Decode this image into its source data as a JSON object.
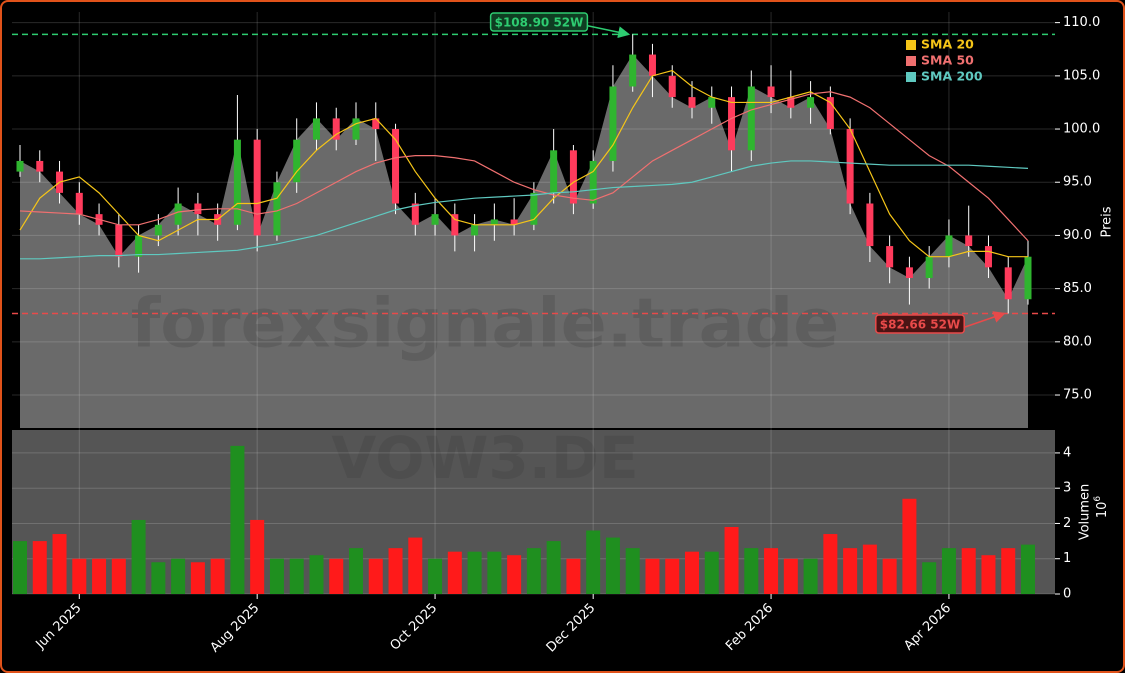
{
  "chart_data": [
    {
      "type": "candlestick",
      "watermark": "forexsignale.trade",
      "ylabel": "Preis",
      "open": [
        96,
        97,
        96,
        94,
        92,
        91,
        88,
        90,
        91,
        93,
        92,
        91,
        99,
        90,
        95,
        99,
        101,
        99,
        101,
        100,
        93,
        91,
        92,
        90,
        91,
        91.5,
        91,
        94,
        98,
        93,
        97,
        104,
        107,
        105,
        103,
        102,
        103,
        98,
        104,
        103,
        102,
        103,
        100,
        93,
        89,
        87,
        86,
        88,
        90,
        89,
        87,
        84
      ],
      "high": [
        98.5,
        98,
        97,
        95,
        93,
        92,
        91,
        92,
        94.5,
        94,
        93,
        103.2,
        100,
        96,
        101,
        102.5,
        102,
        102.5,
        102.5,
        100.5,
        94,
        93.5,
        93,
        92,
        93,
        93.5,
        95,
        100,
        98.5,
        98,
        106,
        108.9,
        108,
        106,
        104.5,
        104,
        104,
        105.5,
        106,
        105.5,
        104.5,
        104,
        101,
        94,
        90,
        88,
        89,
        91.5,
        92.8,
        90,
        88,
        89.5
      ],
      "low": [
        95.5,
        95,
        93,
        91,
        90,
        87,
        86.5,
        89,
        90,
        90,
        89.5,
        90.5,
        88.5,
        89.5,
        94,
        98,
        98,
        98.5,
        97,
        92,
        90,
        90,
        88.5,
        88.5,
        89.5,
        90,
        90.5,
        93,
        92,
        92.5,
        96,
        103.5,
        103,
        102,
        101,
        100.5,
        96,
        97,
        101.5,
        101,
        100.5,
        99.5,
        92,
        87.5,
        85.5,
        83.5,
        85,
        87,
        88,
        86,
        82.66,
        83.5
      ],
      "close": [
        97,
        96,
        94,
        92,
        91,
        88,
        90,
        91,
        93,
        92,
        91,
        99,
        90,
        95,
        99,
        101,
        99,
        101,
        100,
        93,
        91,
        92,
        90,
        91,
        91.5,
        91,
        94,
        98,
        93,
        97,
        104,
        107,
        105,
        103,
        102,
        103,
        98,
        104,
        103,
        102,
        103,
        100,
        93,
        89,
        87,
        86,
        88,
        90,
        89,
        87,
        84,
        88
      ],
      "up_color": "#2fb52f",
      "down_color": "#ff3b5c",
      "area_color": "#6a6a6a",
      "series": [
        {
          "name": "SMA 20",
          "color": "#f5c518",
          "values": [
            90.5,
            93.5,
            95,
            95.5,
            94,
            92,
            90,
            89.5,
            90.5,
            91.5,
            91.5,
            93,
            93,
            93.5,
            96,
            98,
            99.5,
            100.5,
            101,
            99,
            96,
            93.5,
            91.5,
            91,
            91,
            91,
            91.5,
            93.5,
            95,
            96,
            98.5,
            102,
            105,
            105.5,
            104,
            103,
            102.5,
            102.5,
            102.5,
            103,
            103.5,
            102.5,
            100,
            96,
            92,
            89.5,
            88,
            88,
            88.5,
            88.5,
            88,
            88
          ]
        },
        {
          "name": "SMA 50",
          "color": "#f07070",
          "values": [
            92.3,
            92.2,
            92.1,
            92,
            91.5,
            91,
            91,
            91.5,
            92.2,
            92.4,
            92.5,
            92.5,
            92,
            92.3,
            93,
            94,
            95,
            96,
            96.8,
            97.3,
            97.5,
            97.5,
            97.3,
            97,
            96,
            95,
            94.3,
            93.8,
            93.5,
            93.3,
            94,
            95.5,
            97,
            98,
            99,
            100,
            101,
            101.8,
            102.3,
            102.8,
            103.3,
            103.5,
            103,
            102,
            100.5,
            99,
            97.5,
            96.5,
            95,
            93.5,
            91.5,
            89.5
          ]
        },
        {
          "name": "SMA 200",
          "color": "#5fc9c0",
          "values": [
            87.8,
            87.8,
            87.9,
            88,
            88.1,
            88.1,
            88.2,
            88.2,
            88.3,
            88.4,
            88.5,
            88.6,
            88.9,
            89.2,
            89.6,
            90,
            90.6,
            91.2,
            91.8,
            92.4,
            92.8,
            93.1,
            93.3,
            93.5,
            93.6,
            93.7,
            93.8,
            94,
            94.1,
            94.3,
            94.5,
            94.6,
            94.7,
            94.8,
            95,
            95.5,
            96,
            96.5,
            96.8,
            97,
            97,
            96.9,
            96.8,
            96.7,
            96.6,
            96.6,
            96.6,
            96.6,
            96.6,
            96.5,
            96.4,
            96.3
          ]
        }
      ],
      "legend": "upper right",
      "grid": true,
      "ylim": [
        71.9,
        111
      ],
      "yticks": [
        {
          "value": 75,
          "label": "75.0"
        },
        {
          "value": 80,
          "label": "80.0"
        },
        {
          "value": 85,
          "label": "85.0"
        },
        {
          "value": 90,
          "label": "90.0"
        },
        {
          "value": 95,
          "label": "95.0"
        },
        {
          "value": 100,
          "label": "100.0"
        },
        {
          "value": 105,
          "label": "105.0"
        },
        {
          "value": 110,
          "label": "110.0"
        }
      ],
      "hlines": [
        {
          "value": 108.9,
          "label": "$108.90 52W",
          "color": "#2ecc71"
        },
        {
          "value": 82.66,
          "label": "$82.66 52W",
          "color": "#e84a4a"
        }
      ]
    },
    {
      "type": "bar",
      "watermark": "VOW3.DE",
      "ylabel": "Volumen",
      "scale_base": "10",
      "scale_exponent": "6",
      "categories": [
        null,
        null,
        null,
        "Jun 2025",
        null,
        null,
        null,
        null,
        null,
        null,
        null,
        null,
        "Aug 2025",
        null,
        null,
        null,
        null,
        null,
        null,
        null,
        null,
        "Oct 2025",
        null,
        null,
        null,
        null,
        null,
        null,
        null,
        "Dec 2025",
        null,
        null,
        null,
        null,
        null,
        null,
        null,
        null,
        "Feb 2026",
        null,
        null,
        null,
        null,
        null,
        null,
        null,
        null,
        "Apr 2026",
        null,
        null,
        null,
        null
      ],
      "values": [
        1.5,
        1.5,
        1.7,
        1.0,
        1.0,
        1.0,
        2.1,
        0.9,
        1.0,
        0.9,
        1.0,
        4.2,
        2.1,
        1.0,
        1.0,
        1.1,
        1.0,
        1.3,
        1.0,
        1.3,
        1.6,
        1.0,
        1.2,
        1.2,
        1.2,
        1.1,
        1.3,
        1.5,
        1.0,
        1.8,
        1.6,
        1.3,
        1.0,
        1.0,
        1.2,
        1.2,
        1.9,
        1.3,
        1.3,
        1.0,
        1.0,
        1.7,
        1.3,
        1.4,
        1.0,
        2.7,
        0.9,
        1.3,
        1.3,
        1.1,
        1.3,
        1.4
      ],
      "up_color": "#1f8f1f",
      "down_color": "#ff1a1a",
      "grid": true,
      "ylim": [
        0,
        4.65
      ],
      "yticks": [
        0,
        1,
        2,
        3,
        4
      ]
    }
  ]
}
